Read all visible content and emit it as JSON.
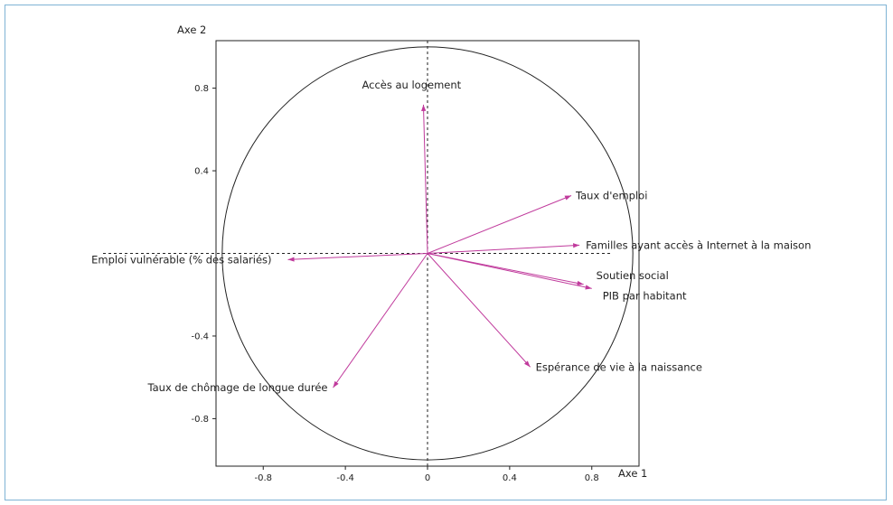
{
  "chart_data": {
    "type": "scatter",
    "subtype": "correlation-circle",
    "xlabel": "Axe 1",
    "ylabel": "Axe 2",
    "xlim": [
      -1.03,
      1.03
    ],
    "ylim": [
      -1.03,
      1.03
    ],
    "x_ticks": [
      -0.8,
      -0.4,
      0,
      0.4,
      0.8
    ],
    "y_ticks": [
      0.8,
      0.4,
      -0.4,
      -0.8
    ],
    "x_tick_labels": [
      "-0.8",
      "-0.4",
      "0",
      "0.4",
      "0.8"
    ],
    "y_tick_labels": [
      "0.8",
      "0.4",
      "-0.4",
      "-0.8"
    ],
    "arrow_color": "#c03a9c",
    "variables": [
      {
        "name": "Accès au logement",
        "x": -0.02,
        "y": 0.72
      },
      {
        "name": "Taux d'emploi",
        "x": 0.7,
        "y": 0.28
      },
      {
        "name": "Familles ayant accès à Internet à la maison",
        "x": 0.74,
        "y": 0.04
      },
      {
        "name": "Emploi vulnérable (% des salariés)",
        "x": -0.68,
        "y": -0.03
      },
      {
        "name": "Soutien social",
        "x": 0.76,
        "y": -0.15
      },
      {
        "name": "PIB par habitant",
        "x": 0.8,
        "y": -0.17
      },
      {
        "name": "Espérance de vie à la naissance",
        "x": 0.5,
        "y": -0.55
      },
      {
        "name": "Taux de chômage de longue durée",
        "x": -0.46,
        "y": -0.65
      }
    ]
  }
}
